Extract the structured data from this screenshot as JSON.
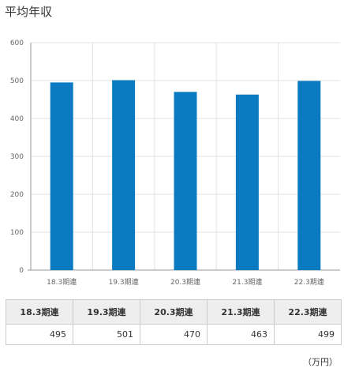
{
  "title": "平均年収",
  "unit": "（万円）",
  "colors": {
    "bar": "#0a7bc1",
    "grid": "#e3e3e3",
    "axis": "#999999"
  },
  "chart_data": {
    "type": "bar",
    "title": "平均年収",
    "xlabel": "",
    "ylabel": "",
    "categories": [
      "18.3期連",
      "19.3期連",
      "20.3期連",
      "21.3期連",
      "22.3期連"
    ],
    "values": [
      495,
      501,
      470,
      463,
      499
    ],
    "ylim": [
      0,
      600
    ],
    "yticks": [
      0,
      100,
      200,
      300,
      400,
      500,
      600
    ],
    "grid": true,
    "legend": "none"
  },
  "table": {
    "headers": [
      "18.3期連",
      "19.3期連",
      "20.3期連",
      "21.3期連",
      "22.3期連"
    ],
    "values": [
      "495",
      "501",
      "470",
      "463",
      "499"
    ]
  }
}
